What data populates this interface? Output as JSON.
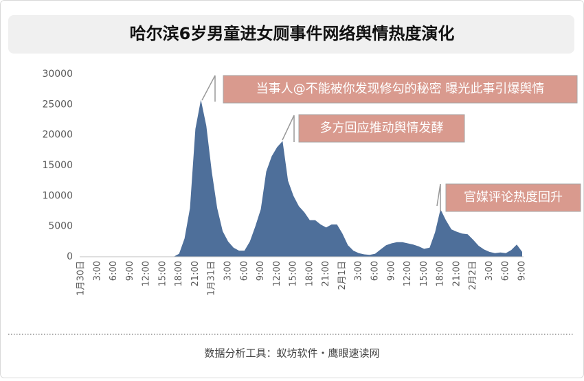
{
  "chart_data": {
    "type": "area",
    "title": "哈尔滨6岁男童进女厕事件网络舆情热度演化",
    "footer": "数据分析工具：蚁坊软件・鹰眼速读网",
    "color": "#4e6f9a",
    "grid": false,
    "ylim": [
      0,
      30000
    ],
    "yticks": [
      0,
      5000,
      10000,
      15000,
      20000,
      25000,
      30000
    ],
    "categories": [
      "1月30日",
      null,
      null,
      "3:00",
      null,
      null,
      "6:00",
      null,
      null,
      "9:00",
      null,
      null,
      "12:00",
      null,
      null,
      "15:00",
      null,
      null,
      "18:00",
      null,
      null,
      "21:00",
      null,
      null,
      "1月31日",
      null,
      null,
      "3:00",
      null,
      null,
      "6:00",
      null,
      null,
      "9:00",
      null,
      null,
      "12:00",
      null,
      null,
      "15:00",
      null,
      null,
      "18:00",
      null,
      null,
      "21:00",
      null,
      null,
      "2月1日",
      null,
      null,
      "3:00",
      null,
      null,
      "6:00",
      null,
      null,
      "9:00",
      null,
      null,
      "12:00",
      null,
      null,
      "15:00",
      null,
      null,
      "18:00",
      null,
      null,
      "21:00",
      null,
      null,
      "2月2日",
      null,
      null,
      "3:00",
      null,
      null,
      "6:00",
      null,
      null,
      "9:00"
    ],
    "values": [
      0,
      0,
      0,
      0,
      0,
      0,
      0,
      0,
      0,
      0,
      0,
      0,
      0,
      0,
      0,
      0,
      0,
      0,
      500,
      3000,
      8000,
      21000,
      25800,
      21500,
      14000,
      8000,
      4200,
      2500,
      1500,
      1000,
      1000,
      2500,
      5000,
      7800,
      14000,
      16500,
      18000,
      19000,
      12500,
      10000,
      8300,
      7300,
      6000,
      6000,
      5300,
      4800,
      5300,
      5300,
      3800,
      1900,
      1000,
      600,
      400,
      300,
      500,
      1200,
      1900,
      2200,
      2400,
      2400,
      2200,
      2000,
      1700,
      1300,
      1500,
      4000,
      7800,
      6000,
      4500,
      4100,
      3800,
      3700,
      2800,
      1800,
      1200,
      800,
      600,
      700,
      600,
      1100,
      2000,
      800
    ],
    "annotations": [
      "当事人@不能被你发现修勾的秘密 曝光此事引爆舆情",
      "多方回应推动舆情发酵",
      "官媒评论热度回升"
    ]
  }
}
